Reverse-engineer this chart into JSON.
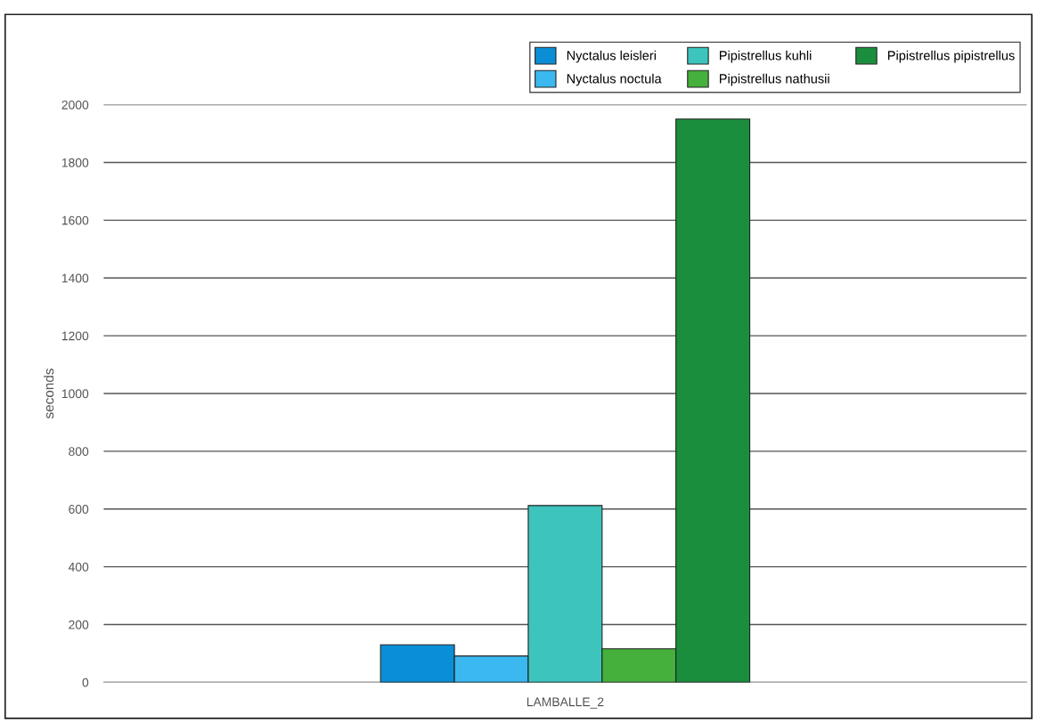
{
  "chart_data": {
    "type": "bar",
    "ylabel": "seconds",
    "categories": [
      "LAMBALLE_2"
    ],
    "series": [
      {
        "name": "Nyctalus leisleri",
        "color": "#0a8fd6",
        "values": [
          130
        ]
      },
      {
        "name": "Nyctalus noctula",
        "color": "#3ab8ef",
        "values": [
          91
        ]
      },
      {
        "name": "Pipistrellus kuhli",
        "color": "#3cc4bd",
        "values": [
          612
        ]
      },
      {
        "name": "Pipistrellus nathusii",
        "color": "#45b03c",
        "values": [
          116
        ]
      },
      {
        "name": "Pipistrellus pipistrellus",
        "color": "#1b8e3e",
        "values": [
          1950
        ]
      }
    ],
    "ylim": [
      0,
      2000
    ],
    "yticks": [
      0,
      200,
      400,
      600,
      800,
      1000,
      1200,
      1400,
      1600,
      1800,
      2000
    ],
    "grid": "y",
    "legend": "top right"
  }
}
